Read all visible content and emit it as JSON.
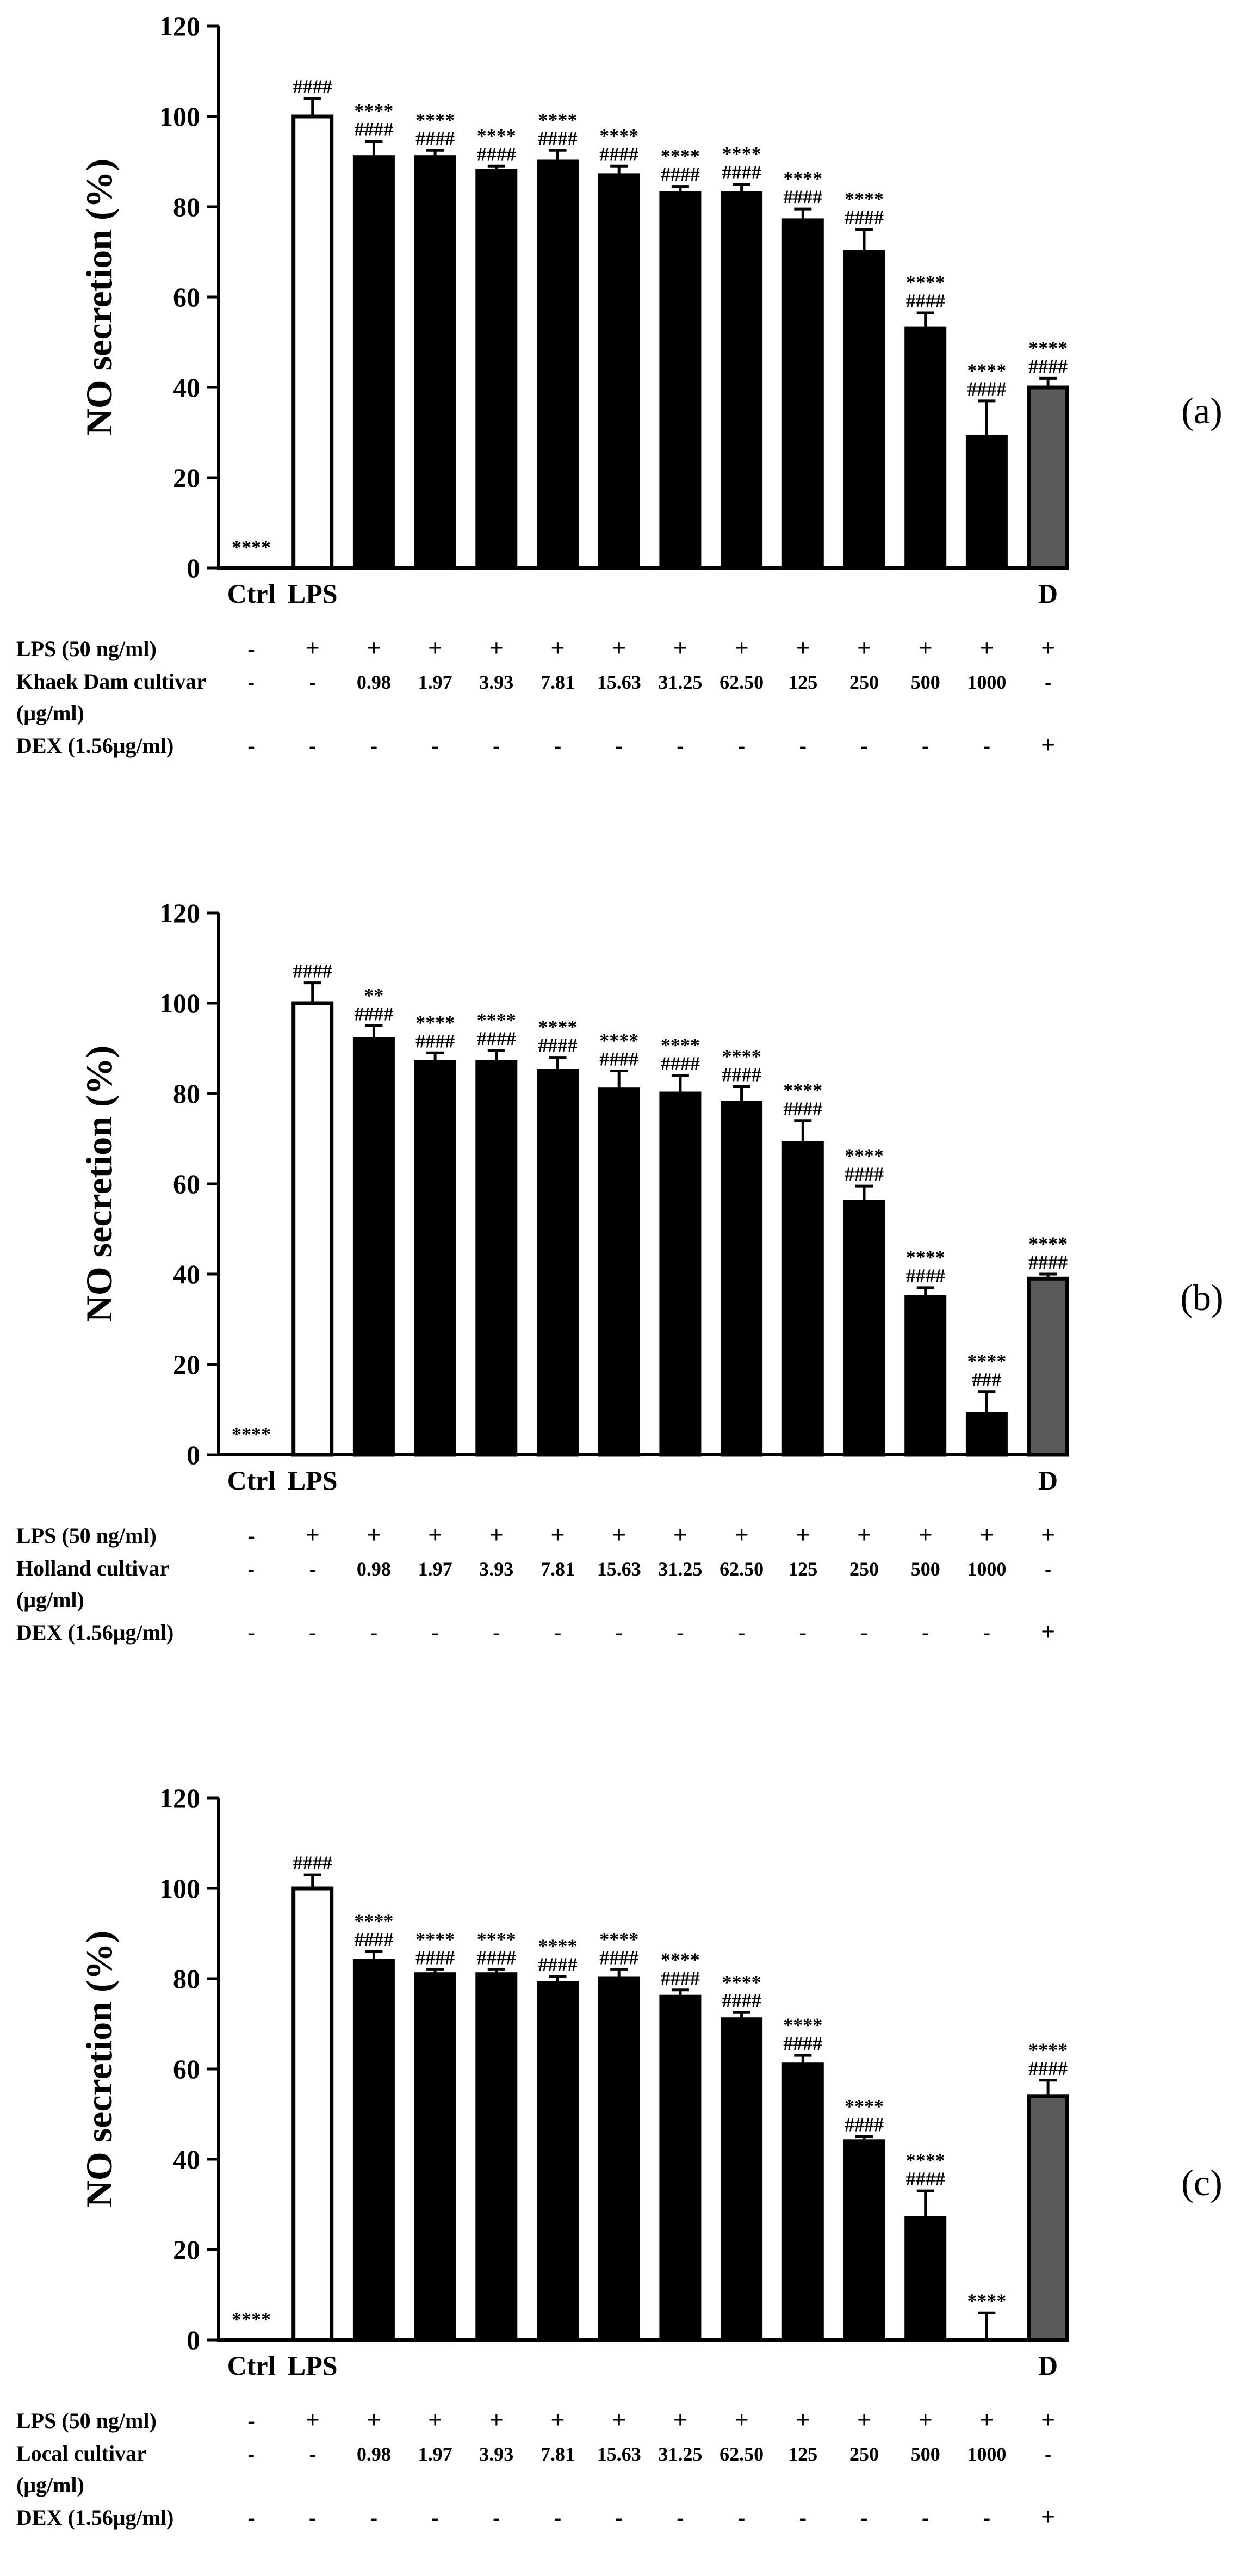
{
  "figure": {
    "y_axis_label": "NO secretion (%)",
    "y_ticks": [
      "0",
      "20",
      "40",
      "60",
      "80",
      "100",
      "120"
    ],
    "categories": [
      "Ctrl",
      "LPS",
      "",
      "",
      "",
      "",
      "",
      "",
      "",
      "",
      "",
      "",
      "",
      "D"
    ],
    "row_labels": {
      "lps": "LPS (50 ng/ml)",
      "unit": "(μg/ml)",
      "dex": "DEX (1.56μg/ml)"
    },
    "lps_row": [
      "-",
      "+",
      "+",
      "+",
      "+",
      "+",
      "+",
      "+",
      "+",
      "+",
      "+",
      "+",
      "+",
      "+"
    ],
    "conc_row": [
      "-",
      "-",
      "0.98",
      "1.97",
      "3.93",
      "7.81",
      "15.63",
      "31.25",
      "62.50",
      "125",
      "250",
      "500",
      "1000",
      "-"
    ],
    "dex_row": [
      "-",
      "-",
      "-",
      "-",
      "-",
      "-",
      "-",
      "-",
      "-",
      "-",
      "-",
      "-",
      "-",
      "+"
    ]
  },
  "panels": [
    {
      "id": "a",
      "panel_label": "(a)",
      "cultivar_label": "Khaek Dam cultivar"
    },
    {
      "id": "b",
      "panel_label": "(b)",
      "cultivar_label": "Holland cultivar"
    },
    {
      "id": "c",
      "panel_label": "(c)",
      "cultivar_label": "Local cultivar"
    }
  ],
  "chart_data": [
    {
      "type": "bar",
      "title": "(a)",
      "ylabel": "NO secretion (%)",
      "ylim": [
        0,
        120
      ],
      "yticks": [
        0,
        20,
        40,
        60,
        80,
        100,
        120
      ],
      "categories": [
        "Ctrl",
        "LPS",
        "0.98",
        "1.97",
        "3.93",
        "7.81",
        "15.63",
        "31.25",
        "62.50",
        "125",
        "250",
        "500",
        "1000",
        "D"
      ],
      "values": [
        0,
        100,
        91,
        91,
        88,
        90,
        87,
        83,
        83,
        77,
        70,
        53,
        29,
        40
      ],
      "errors": [
        0,
        4,
        3.5,
        1.5,
        1,
        2.5,
        2,
        1.5,
        2,
        2.5,
        5,
        3.5,
        8,
        2
      ],
      "bar_styles": [
        "none",
        "open",
        "solid",
        "solid",
        "solid",
        "solid",
        "solid",
        "solid",
        "solid",
        "solid",
        "solid",
        "solid",
        "solid",
        "grey"
      ],
      "annotations": [
        [
          "****"
        ],
        [
          "####"
        ],
        [
          "****",
          "####"
        ],
        [
          "****",
          "####"
        ],
        [
          "****",
          "####"
        ],
        [
          "****",
          "####"
        ],
        [
          "****",
          "####"
        ],
        [
          "****",
          "####"
        ],
        [
          "****",
          "####"
        ],
        [
          "****",
          "####"
        ],
        [
          "****",
          "####"
        ],
        [
          "****",
          "####"
        ],
        [
          "****",
          "####"
        ],
        [
          "****",
          "####"
        ]
      ]
    },
    {
      "type": "bar",
      "title": "(b)",
      "ylabel": "NO secretion (%)",
      "ylim": [
        0,
        120
      ],
      "yticks": [
        0,
        20,
        40,
        60,
        80,
        100,
        120
      ],
      "categories": [
        "Ctrl",
        "LPS",
        "0.98",
        "1.97",
        "3.93",
        "7.81",
        "15.63",
        "31.25",
        "62.50",
        "125",
        "250",
        "500",
        "1000",
        "D"
      ],
      "values": [
        0,
        100,
        92,
        87,
        87,
        85,
        81,
        80,
        78,
        69,
        56,
        35,
        9,
        39
      ],
      "errors": [
        0,
        4.5,
        3,
        2,
        2.5,
        3,
        4,
        4,
        3.5,
        5,
        3.5,
        2,
        5,
        1
      ],
      "bar_styles": [
        "none",
        "open",
        "solid",
        "solid",
        "solid",
        "solid",
        "solid",
        "solid",
        "solid",
        "solid",
        "solid",
        "solid",
        "solid",
        "grey"
      ],
      "annotations": [
        [
          "****"
        ],
        [
          "####"
        ],
        [
          "**",
          "####"
        ],
        [
          "****",
          "####"
        ],
        [
          "****",
          "####"
        ],
        [
          "****",
          "####"
        ],
        [
          "****",
          "####"
        ],
        [
          "****",
          "####"
        ],
        [
          "****",
          "####"
        ],
        [
          "****",
          "####"
        ],
        [
          "****",
          "####"
        ],
        [
          "****",
          "####"
        ],
        [
          "****",
          "###"
        ],
        [
          "****",
          "####"
        ]
      ]
    },
    {
      "type": "bar",
      "title": "(c)",
      "ylabel": "NO secretion (%)",
      "ylim": [
        0,
        120
      ],
      "yticks": [
        0,
        20,
        40,
        60,
        80,
        100,
        120
      ],
      "categories": [
        "Ctrl",
        "LPS",
        "0.98",
        "1.97",
        "3.93",
        "7.81",
        "15.63",
        "31.25",
        "62.50",
        "125",
        "250",
        "500",
        "1000",
        "D"
      ],
      "values": [
        0,
        100,
        84,
        81,
        81,
        79,
        80,
        76,
        71,
        61,
        44,
        27,
        0,
        54
      ],
      "errors": [
        0,
        3,
        2,
        1,
        1,
        1.5,
        2,
        1.5,
        1.5,
        2,
        1,
        6,
        6,
        3.5
      ],
      "bar_styles": [
        "none",
        "open",
        "solid",
        "solid",
        "solid",
        "solid",
        "solid",
        "solid",
        "solid",
        "solid",
        "solid",
        "solid",
        "solid",
        "grey"
      ],
      "annotations": [
        [
          "****"
        ],
        [
          "####"
        ],
        [
          "****",
          "####"
        ],
        [
          "****",
          "####"
        ],
        [
          "****",
          "####"
        ],
        [
          "****",
          "####"
        ],
        [
          "****",
          "####"
        ],
        [
          "****",
          "####"
        ],
        [
          "****",
          "####"
        ],
        [
          "****",
          "####"
        ],
        [
          "****",
          "####"
        ],
        [
          "****",
          "####"
        ],
        [
          "****"
        ],
        [
          "****",
          "####"
        ]
      ]
    }
  ]
}
